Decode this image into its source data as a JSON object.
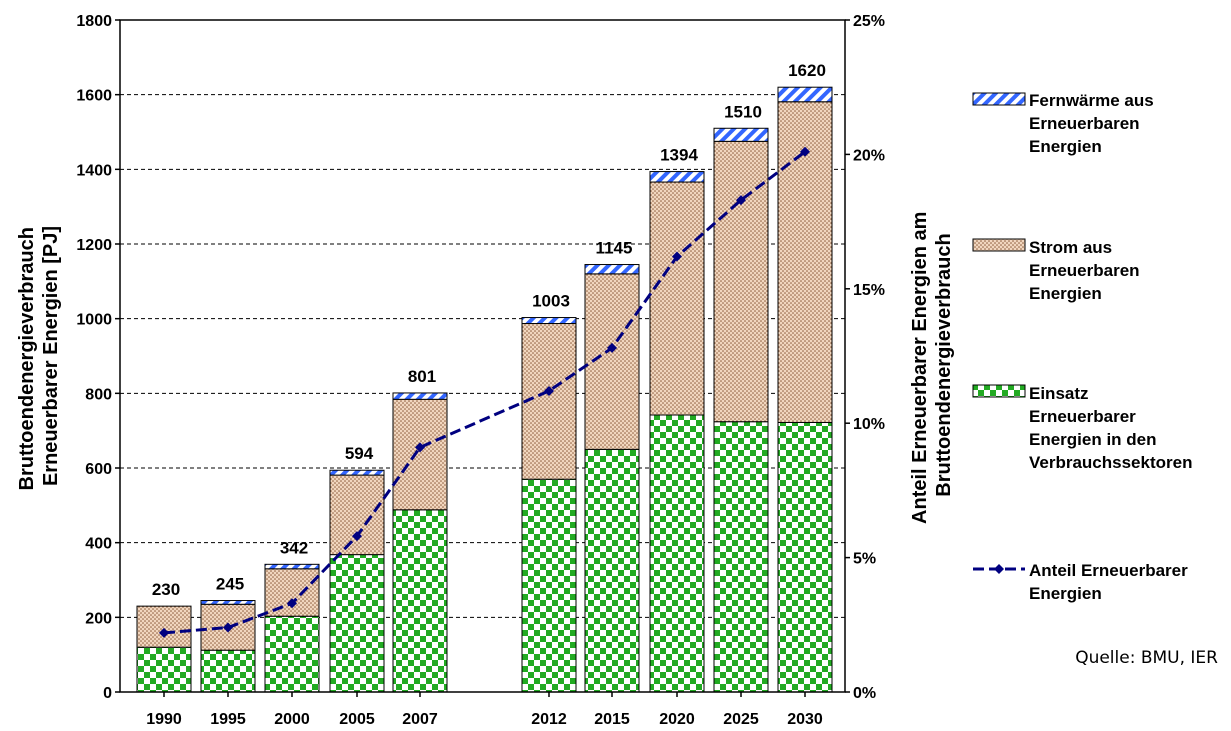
{
  "chart_data": {
    "type": "bar",
    "stacked": true,
    "categories": [
      "1990",
      "1995",
      "2000",
      "2005",
      "2007",
      "2012",
      "2015",
      "2020",
      "2025",
      "2030"
    ],
    "series": [
      {
        "name": "Einsatz Erneuerbarer Energien in den Verbrauchssektoren",
        "values": [
          120,
          112,
          203,
          368,
          488,
          570,
          650,
          742,
          724,
          722
        ],
        "color": "#22aa22",
        "pattern": "checker"
      },
      {
        "name": "Strom aus Erneuerbaren Energien",
        "values": [
          110,
          123,
          127,
          213,
          296,
          417,
          470,
          624,
          751,
          859
        ],
        "color": "#d2a07a",
        "pattern": "dots"
      },
      {
        "name": "Fernwärme aus Erneuerbaren Energien",
        "values": [
          0,
          10,
          12,
          13,
          17,
          16,
          25,
          28,
          35,
          39
        ],
        "color": "#3366ff",
        "pattern": "stripes"
      }
    ],
    "totals": [
      "230",
      "245",
      "342",
      "594",
      "801",
      "1003",
      "1145",
      "1394",
      "1510",
      "1620"
    ],
    "line_series": {
      "name": "Anteil Erneuerbarer Energien",
      "axis": "right",
      "values": [
        2.2,
        2.4,
        3.3,
        5.8,
        9.1,
        11.2,
        12.8,
        16.2,
        18.3,
        20.1
      ],
      "color": "#000080"
    },
    "y_left": {
      "label": "Bruttoendenergieverbrauch Erneuerbarer Energien [PJ]",
      "label_lines": [
        "Bruttoendenergieverbrauch",
        "Erneuerbarer Energien [PJ]"
      ],
      "range": [
        0,
        1800
      ],
      "ticks": [
        "0",
        "200",
        "400",
        "600",
        "800",
        "1000",
        "1200",
        "1400",
        "1600",
        "1800"
      ]
    },
    "y_right": {
      "label": "Anteil Erneuerbarer Energien am Bruttoendenergieverbrauch",
      "label_lines": [
        "Anteil Erneuerbarer Energien am",
        "Bruttoendenergieverbrauch"
      ],
      "range": [
        0,
        25
      ],
      "ticks": [
        "0%",
        "5%",
        "10%",
        "15%",
        "20%",
        "25%"
      ]
    },
    "grid": "horizontal dashed",
    "legend": {
      "placement": "right",
      "items": [
        {
          "key": "district_heat",
          "lines": [
            "Fernwärme aus",
            "Erneuerbaren",
            "Energien"
          ]
        },
        {
          "key": "electricity",
          "lines": [
            "Strom aus",
            "Erneuerbaren",
            "Energien"
          ]
        },
        {
          "key": "sectors",
          "lines": [
            "Einsatz",
            "Erneuerbarer",
            "Energien in den",
            "Verbrauchssektoren"
          ]
        },
        {
          "key": "share",
          "lines": [
            "Anteil Erneuerbarer",
            "Energien"
          ]
        }
      ]
    }
  },
  "source": "Quelle: BMU, IER"
}
